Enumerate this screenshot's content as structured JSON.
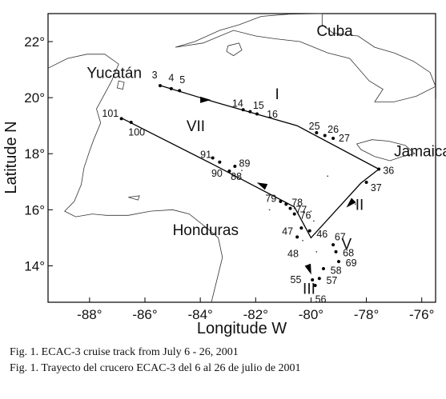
{
  "map": {
    "xaxis": {
      "title": "Longitude  W",
      "ticks": [
        {
          "value": -88,
          "label": "-88°"
        },
        {
          "value": -86,
          "label": "-86°"
        },
        {
          "value": -84,
          "label": "-84°"
        },
        {
          "value": -82,
          "label": "-82°"
        },
        {
          "value": -80,
          "label": "-80°"
        },
        {
          "value": -78,
          "label": "-78°"
        },
        {
          "value": -76,
          "label": "-76°"
        }
      ],
      "range": [
        -89.5,
        -75.5
      ]
    },
    "yaxis": {
      "title": "Latitude N",
      "ticks": [
        {
          "value": 22,
          "label": "22°"
        },
        {
          "value": 20,
          "label": "20°"
        },
        {
          "value": 18,
          "label": "18°"
        },
        {
          "value": 16,
          "label": "16°"
        },
        {
          "value": 14,
          "label": "14°"
        }
      ],
      "range": [
        12.7,
        23.0
      ]
    },
    "places": [
      {
        "name": "Yucatán",
        "lon": -88.1,
        "lat": 20.7
      },
      {
        "name": "Cuba",
        "lon": -79.8,
        "lat": 22.2
      },
      {
        "name": "Jamaica",
        "lon": -77.0,
        "lat": 17.9
      },
      {
        "name": "Honduras",
        "lon": -85.0,
        "lat": 15.1
      }
    ],
    "coastline": {
      "cuba": [
        [
          -84.9,
          21.8
        ],
        [
          -84.2,
          22.0
        ],
        [
          -83.3,
          22.4
        ],
        [
          -82.6,
          22.6
        ],
        [
          -81.8,
          22.9
        ],
        [
          -80.8,
          22.98
        ],
        [
          -79.6,
          23.0
        ],
        [
          -79.6,
          22.6
        ],
        [
          -79.2,
          22.3
        ],
        [
          -78.3,
          22.2
        ],
        [
          -77.7,
          21.8
        ],
        [
          -77.0,
          21.6
        ],
        [
          -76.3,
          21.3
        ],
        [
          -75.7,
          20.9
        ],
        [
          -75.5,
          20.4
        ],
        [
          -76.2,
          20.05
        ],
        [
          -77.0,
          19.85
        ],
        [
          -77.7,
          19.85
        ],
        [
          -77.4,
          20.3
        ],
        [
          -77.9,
          20.6
        ],
        [
          -78.6,
          21.4
        ],
        [
          -79.4,
          21.6
        ],
        [
          -80.4,
          22.0
        ],
        [
          -81.3,
          22.1
        ],
        [
          -82.0,
          22.2
        ],
        [
          -82.8,
          22.4
        ],
        [
          -83.9,
          21.95
        ],
        [
          -84.9,
          21.8
        ]
      ],
      "isla_juventud": [
        [
          -83.0,
          21.85
        ],
        [
          -82.6,
          21.95
        ],
        [
          -82.5,
          21.7
        ],
        [
          -82.8,
          21.5
        ],
        [
          -83.05,
          21.65
        ],
        [
          -83.0,
          21.85
        ]
      ],
      "jamaica": [
        [
          -78.35,
          18.35
        ],
        [
          -77.8,
          18.5
        ],
        [
          -77.2,
          18.45
        ],
        [
          -76.6,
          18.3
        ],
        [
          -76.25,
          18.0
        ],
        [
          -76.7,
          17.9
        ],
        [
          -77.15,
          17.75
        ],
        [
          -77.7,
          17.9
        ],
        [
          -78.2,
          18.15
        ],
        [
          -78.35,
          18.35
        ]
      ],
      "yucatan": [
        [
          -89.5,
          21.05
        ],
        [
          -88.8,
          21.4
        ],
        [
          -88.1,
          21.55
        ],
        [
          -87.45,
          21.55
        ],
        [
          -86.95,
          21.2
        ],
        [
          -87.2,
          20.6
        ],
        [
          -87.5,
          20.05
        ],
        [
          -87.75,
          19.6
        ],
        [
          -87.6,
          19.1
        ],
        [
          -87.85,
          18.5
        ],
        [
          -88.0,
          18.1
        ],
        [
          -88.2,
          17.5
        ],
        [
          -88.3,
          16.9
        ],
        [
          -88.55,
          16.3
        ],
        [
          -88.9,
          15.95
        ],
        [
          -88.5,
          15.75
        ],
        [
          -87.9,
          15.85
        ],
        [
          -87.4,
          15.8
        ],
        [
          -86.6,
          15.8
        ],
        [
          -85.8,
          15.95
        ],
        [
          -85.0,
          16.0
        ],
        [
          -84.4,
          15.85
        ],
        [
          -83.7,
          15.3
        ],
        [
          -83.35,
          15.0
        ],
        [
          -83.2,
          14.3
        ],
        [
          -83.4,
          13.5
        ],
        [
          -83.55,
          12.9
        ],
        [
          -83.6,
          12.7
        ]
      ],
      "cozumel": [
        [
          -86.95,
          20.6
        ],
        [
          -86.75,
          20.55
        ],
        [
          -86.8,
          20.3
        ],
        [
          -87.0,
          20.35
        ],
        [
          -86.95,
          20.6
        ]
      ],
      "islas_bahia": [
        [
          -86.6,
          16.45
        ],
        [
          -86.2,
          16.5
        ],
        [
          -86.25,
          16.35
        ],
        [
          -86.6,
          16.45
        ]
      ],
      "hispaniola": [
        [
          -75.5,
          19.95
        ],
        [
          -75.5,
          18.3
        ]
      ],
      "cays": [
        [
          -80.6,
          16.05
        ],
        [
          -80.0,
          15.95
        ],
        [
          -79.9,
          15.6
        ],
        [
          -80.3,
          14.9
        ],
        [
          -79.8,
          14.5
        ],
        [
          -81.5,
          16.0
        ],
        [
          -82.5,
          17.4
        ],
        [
          -79.4,
          17.2
        ],
        [
          -78.4,
          16.2
        ]
      ]
    },
    "transects": [
      {
        "name": "I",
        "lon": -81.3,
        "lat": 19.95
      },
      {
        "name": "II",
        "lon": -78.4,
        "lat": 16.0
      },
      {
        "name": "III",
        "lon": -80.3,
        "lat": 13.0
      },
      {
        "name": "V",
        "lon": -78.9,
        "lat": 14.6
      },
      {
        "name": "VII",
        "lon": -84.5,
        "lat": 18.8
      }
    ],
    "track": [
      [
        -85.5,
        20.45
      ],
      [
        -83.5,
        19.85
      ],
      [
        -80.5,
        19.0
      ],
      [
        -77.55,
        17.45
      ],
      [
        -78.2,
        16.95
      ],
      [
        -80.0,
        15.0
      ],
      [
        -80.6,
        16.1
      ],
      [
        -83.5,
        17.6
      ],
      [
        -86.8,
        19.25
      ]
    ],
    "arrows": [
      {
        "lon": -83.8,
        "lat": 19.92,
        "angle": 0
      },
      {
        "lon": -78.6,
        "lat": 16.2,
        "angle": 135
      },
      {
        "lon": -80.05,
        "lat": 13.85,
        "angle": 70
      },
      {
        "lon": -81.8,
        "lat": 16.9,
        "angle": 205
      }
    ],
    "stations": [
      {
        "id": "3",
        "lon": -85.45,
        "lat": 20.43,
        "lx": -0.3,
        "ly": 0.38
      },
      {
        "id": "4",
        "lon": -85.05,
        "lat": 20.32,
        "lx": -0.1,
        "ly": 0.38
      },
      {
        "id": "5",
        "lon": -84.75,
        "lat": 20.25,
        "lx": 0.0,
        "ly": 0.38
      },
      {
        "id": "14",
        "lon": -82.45,
        "lat": 19.57,
        "lx": -0.4,
        "ly": 0.22
      },
      {
        "id": "15",
        "lon": -82.2,
        "lat": 19.5,
        "lx": 0.1,
        "ly": 0.22
      },
      {
        "id": "16",
        "lon": -81.95,
        "lat": 19.42,
        "lx": 0.35,
        "ly": -0.02
      },
      {
        "id": "25",
        "lon": -79.8,
        "lat": 18.75,
        "lx": -0.28,
        "ly": 0.22
      },
      {
        "id": "26",
        "lon": -79.5,
        "lat": 18.65,
        "lx": 0.1,
        "ly": 0.22
      },
      {
        "id": "27",
        "lon": -79.2,
        "lat": 18.55,
        "lx": 0.2,
        "ly": 0.0
      },
      {
        "id": "36",
        "lon": -77.55,
        "lat": 17.45,
        "lx": 0.15,
        "ly": -0.05
      },
      {
        "id": "37",
        "lon": -78.0,
        "lat": 16.98,
        "lx": 0.15,
        "ly": -0.2
      },
      {
        "id": "46",
        "lon": -80.05,
        "lat": 15.25,
        "lx": 0.25,
        "ly": -0.12
      },
      {
        "id": "47",
        "lon": -80.35,
        "lat": 15.35,
        "lx": -0.7,
        "ly": -0.12
      },
      {
        "id": "48",
        "lon": -80.5,
        "lat": 15.03,
        "lx": -0.35,
        "ly": -0.6
      },
      {
        "id": "55",
        "lon": -79.95,
        "lat": 13.5,
        "lx": -0.8,
        "ly": 0.0
      },
      {
        "id": "56",
        "lon": -79.85,
        "lat": 13.3,
        "lx": 0.0,
        "ly": -0.5
      },
      {
        "id": "57",
        "lon": -79.7,
        "lat": 13.55,
        "lx": 0.25,
        "ly": -0.08
      },
      {
        "id": "58",
        "lon": -79.55,
        "lat": 13.9,
        "lx": 0.25,
        "ly": -0.08
      },
      {
        "id": "67",
        "lon": -79.2,
        "lat": 14.75,
        "lx": 0.05,
        "ly": 0.28
      },
      {
        "id": "68",
        "lon": -79.1,
        "lat": 14.5,
        "lx": 0.25,
        "ly": -0.05
      },
      {
        "id": "69",
        "lon": -79.0,
        "lat": 14.15,
        "lx": 0.25,
        "ly": -0.05
      },
      {
        "id": "76",
        "lon": -80.6,
        "lat": 15.85,
        "lx": 0.2,
        "ly": -0.05
      },
      {
        "id": "77",
        "lon": -80.75,
        "lat": 16.05,
        "lx": 0.2,
        "ly": -0.05
      },
      {
        "id": "78",
        "lon": -80.9,
        "lat": 16.2,
        "lx": 0.2,
        "ly": 0.05
      },
      {
        "id": "79",
        "lon": -81.1,
        "lat": 16.3,
        "lx": -0.55,
        "ly": 0.1
      },
      {
        "id": "88",
        "lon": -82.95,
        "lat": 17.38,
        "lx": 0.05,
        "ly": -0.2
      },
      {
        "id": "89",
        "lon": -82.75,
        "lat": 17.55,
        "lx": 0.15,
        "ly": 0.1
      },
      {
        "id": "90",
        "lon": -83.3,
        "lat": 17.7,
        "lx": -0.3,
        "ly": -0.4
      },
      {
        "id": "91",
        "lon": -83.55,
        "lat": 17.85,
        "lx": -0.45,
        "ly": 0.12
      },
      {
        "id": "100",
        "lon": -86.5,
        "lat": 19.12,
        "lx": -0.1,
        "ly": -0.35
      },
      {
        "id": "101",
        "lon": -86.85,
        "lat": 19.25,
        "lx": -0.7,
        "ly": 0.18
      }
    ]
  },
  "caption": {
    "line1": "Fig. 1. ECAC-3 cruise track from July 6 - 26, 2001",
    "line2": "Fig. 1. Trayecto del crucero ECAC-3 del 6 al 26 de julio de 2001"
  }
}
